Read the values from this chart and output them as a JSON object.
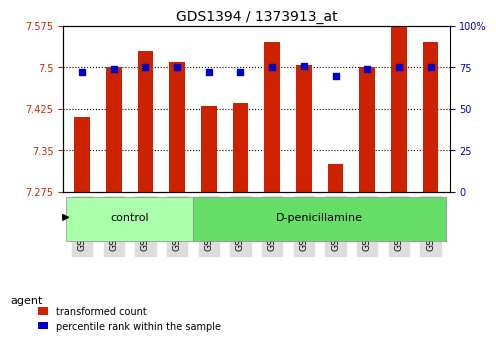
{
  "title": "GDS1394 / 1373913_at",
  "samples": [
    "GSM61807",
    "GSM61808",
    "GSM61809",
    "GSM61810",
    "GSM61811",
    "GSM61812",
    "GSM61813",
    "GSM61814",
    "GSM61815",
    "GSM61816",
    "GSM61817",
    "GSM61818"
  ],
  "transformed_count": [
    7.41,
    7.5,
    7.53,
    7.51,
    7.43,
    7.435,
    7.545,
    7.505,
    7.325,
    7.5,
    7.575,
    7.545
  ],
  "percentile_rank": [
    72,
    74,
    75,
    75,
    72,
    72,
    75,
    76,
    70,
    74,
    75,
    75
  ],
  "bar_color": "#cc2200",
  "dot_color": "#0000cc",
  "ylim_left": [
    7.275,
    7.575
  ],
  "ylim_right": [
    0,
    100
  ],
  "yticks_left": [
    7.275,
    7.35,
    7.425,
    7.5,
    7.575
  ],
  "yticks_right": [
    0,
    25,
    50,
    75,
    100
  ],
  "ytick_labels_left": [
    "7.275",
    "7.35",
    "7.425",
    "7.5",
    "7.575"
  ],
  "ytick_labels_right": [
    "0",
    "25",
    "50",
    "75",
    "100%"
  ],
  "groups": [
    {
      "label": "control",
      "start": 0,
      "end": 3,
      "color": "#aaffaa"
    },
    {
      "label": "D-penicillamine",
      "start": 4,
      "end": 11,
      "color": "#66dd66"
    }
  ],
  "agent_label": "agent",
  "legend_items": [
    {
      "label": "transformed count",
      "color": "#cc2200"
    },
    {
      "label": "percentile rank within the sample",
      "color": "#0000cc"
    }
  ],
  "grid_color": "#000000",
  "background_color": "#ffffff",
  "plot_bg_color": "#ffffff",
  "bar_width": 0.5,
  "tick_label_color_left": "#cc2200",
  "tick_label_color_right": "#0000cc"
}
